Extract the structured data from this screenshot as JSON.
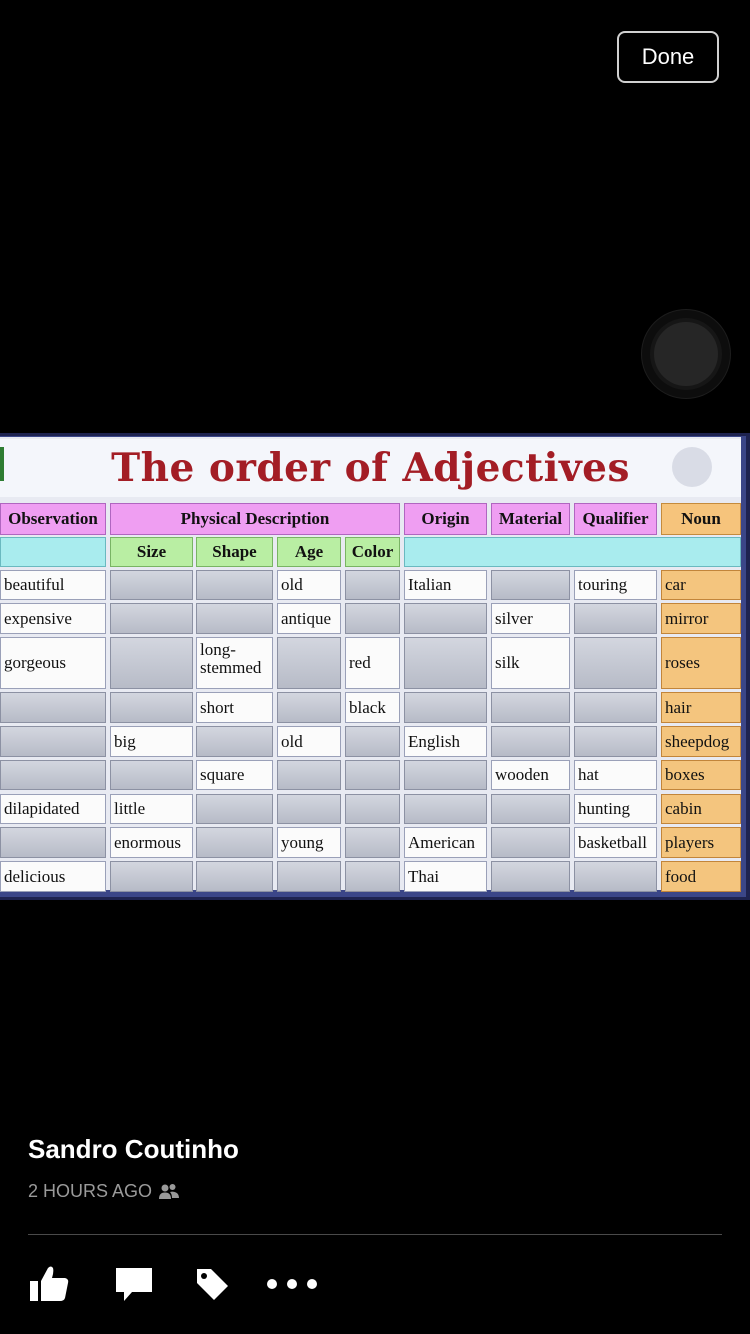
{
  "header": {
    "done_label": "Done"
  },
  "poster": {
    "title": "The order of Adjectives",
    "headers": [
      "Observation",
      "Physical Description",
      "Origin",
      "Material",
      "Qualifier",
      "Noun"
    ],
    "subheaders": [
      "Size",
      "Shape",
      "Age",
      "Color"
    ],
    "rows": [
      [
        "beautiful",
        "",
        "",
        "old",
        "",
        "Italian",
        "",
        "touring",
        "car"
      ],
      [
        "expensive",
        "",
        "",
        "antique",
        "",
        "",
        "silver",
        "",
        "mirror"
      ],
      [
        "gorgeous",
        "",
        "long-\nstemmed",
        "",
        "red",
        "",
        "silk",
        "",
        "roses"
      ],
      [
        "",
        "",
        "short",
        "",
        "black",
        "",
        "",
        "",
        "hair"
      ],
      [
        "",
        "big",
        "",
        "old",
        "",
        "English",
        "",
        "",
        "sheepdog"
      ],
      [
        "",
        "",
        "square",
        "",
        "",
        "",
        "wooden",
        "hat",
        "boxes"
      ],
      [
        "dilapidated",
        "little",
        "",
        "",
        "",
        "",
        "",
        "hunting",
        "cabin"
      ],
      [
        "",
        "enormous",
        "",
        "young",
        "",
        "American",
        "",
        "basketball",
        "players"
      ],
      [
        "delicious",
        "",
        "",
        "",
        "",
        "Thai",
        "",
        "",
        "food"
      ]
    ]
  },
  "post": {
    "author": "Sandro Coutinho",
    "time": "2 HOURS AGO"
  },
  "icons": [
    "like-icon",
    "comment-icon",
    "tag-icon",
    "more-icon",
    "friends-icon"
  ]
}
